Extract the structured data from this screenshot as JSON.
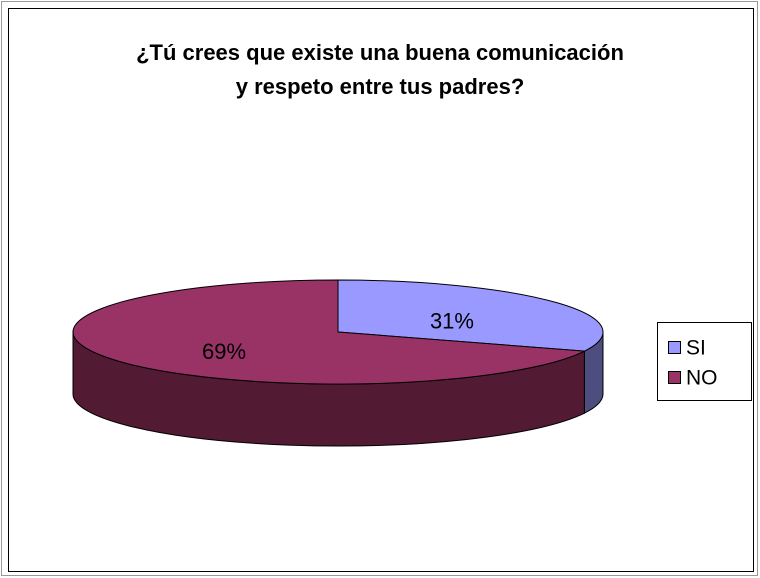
{
  "chart_data": {
    "type": "pie3d",
    "title": "¿Tú crees que existe una buena comunicación y respeto entre tus padres?",
    "categories": [
      "SI",
      "NO"
    ],
    "values": [
      31,
      69
    ],
    "value_labels": [
      "31%",
      "69%"
    ],
    "colors": [
      "#9999ff",
      "#993366"
    ],
    "side_colors": [
      "#4d4d80",
      "#521a33"
    ],
    "legend": "right"
  }
}
